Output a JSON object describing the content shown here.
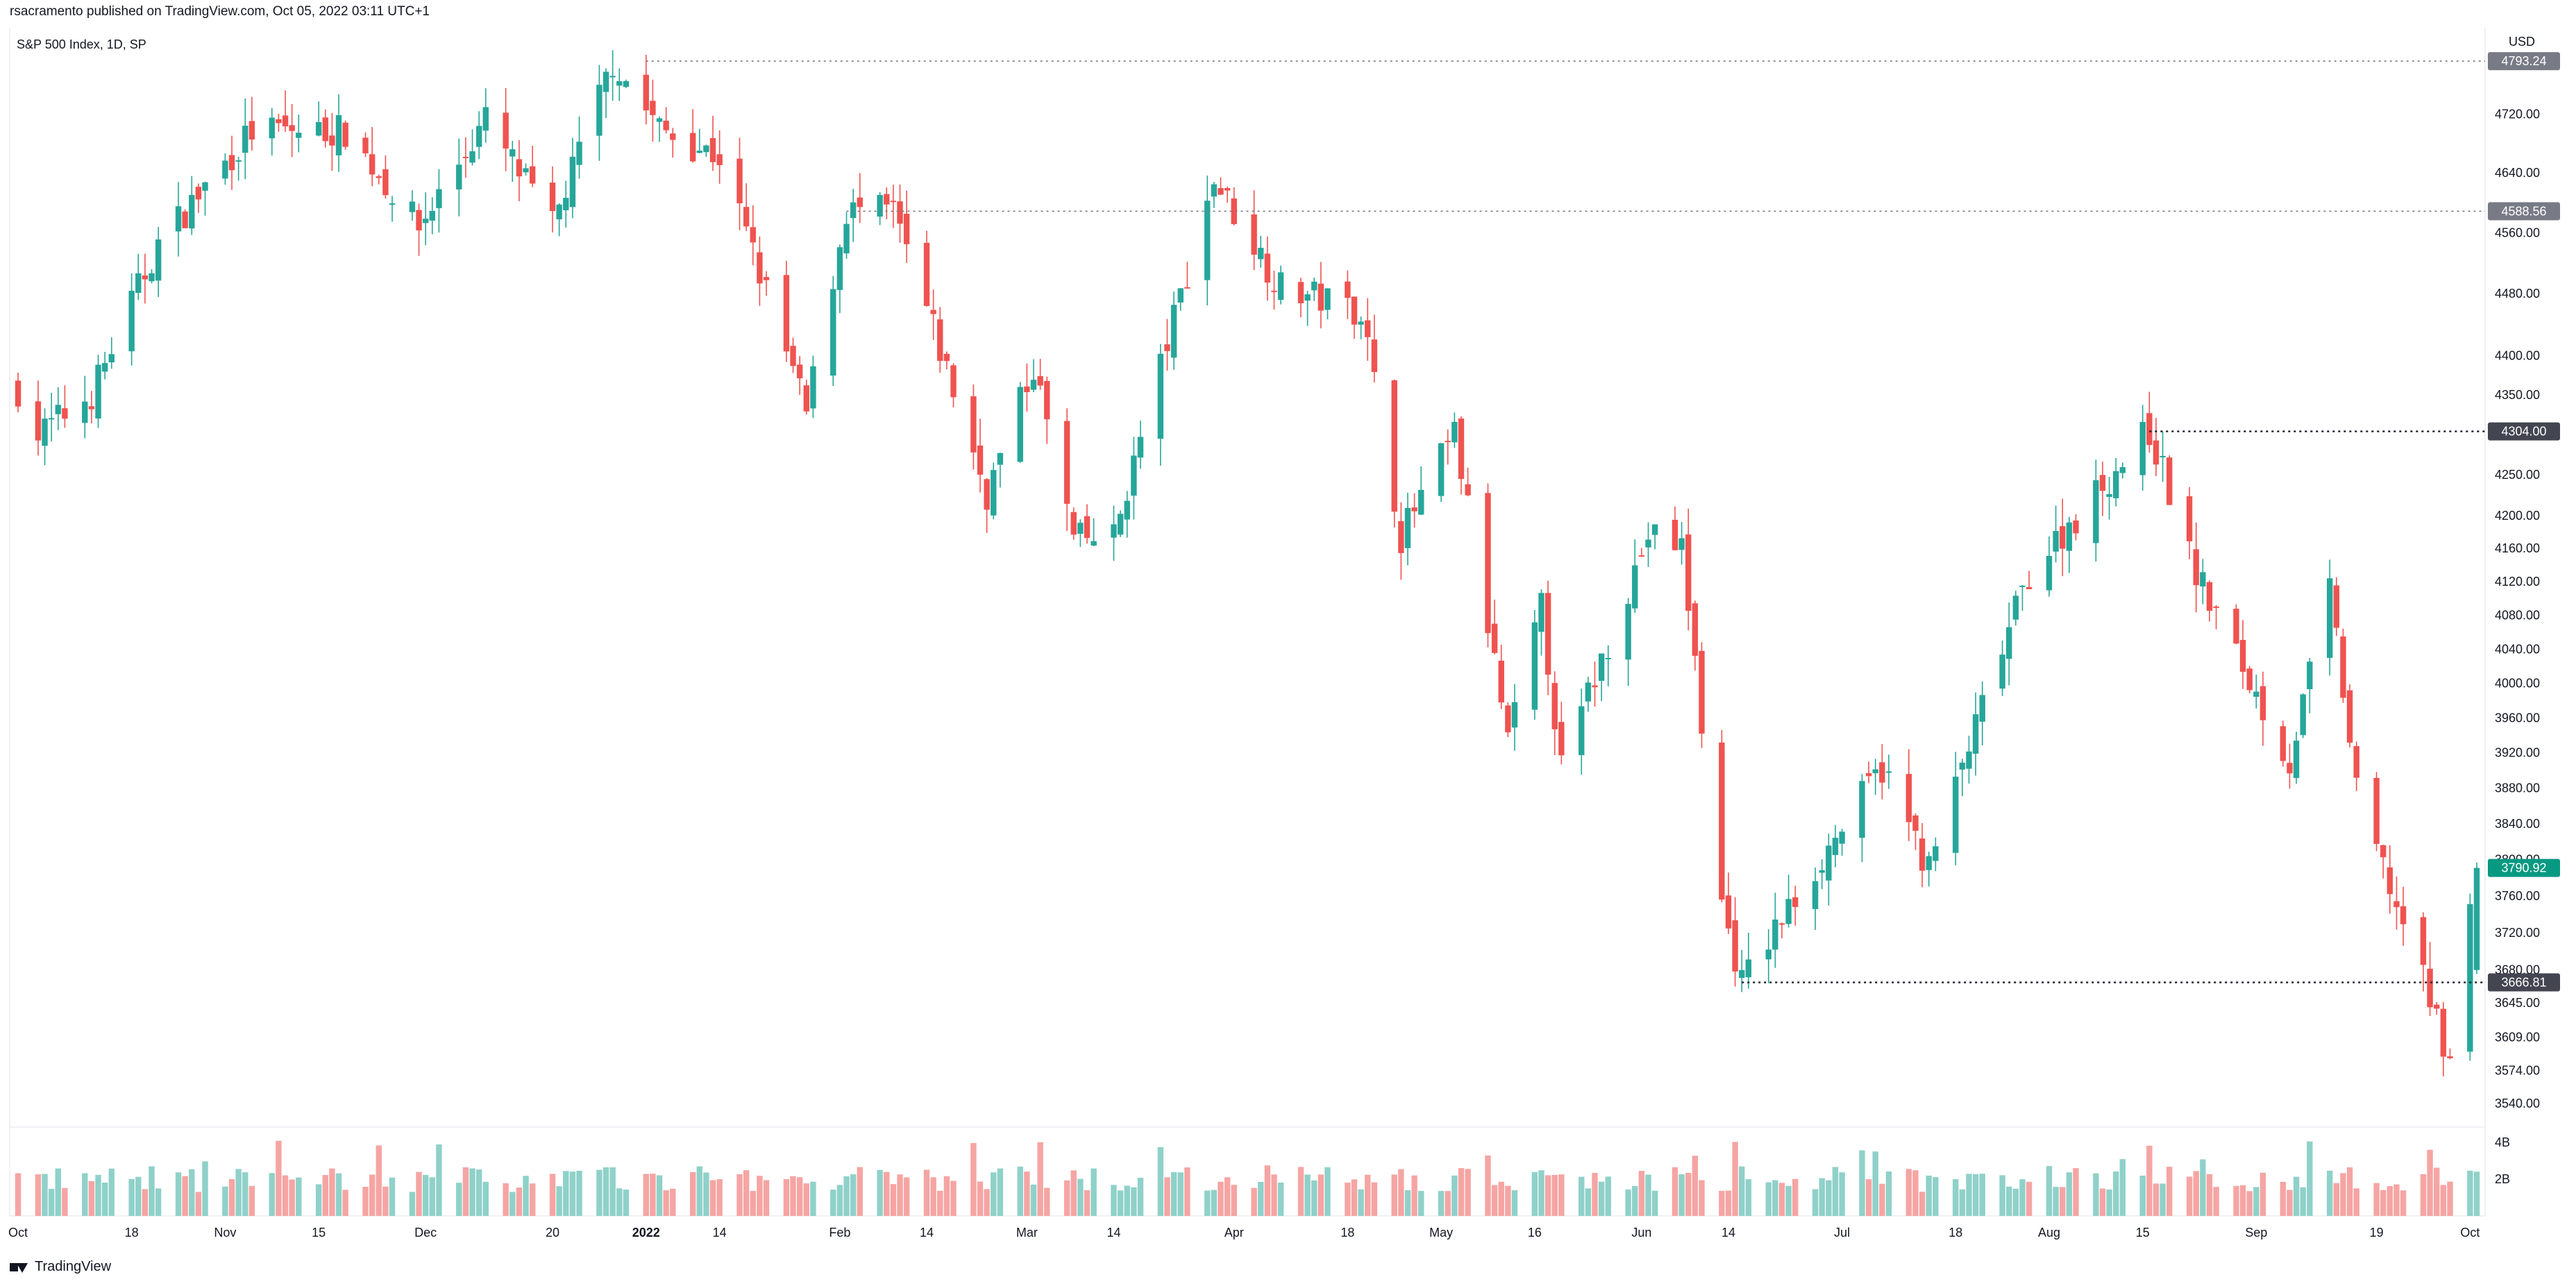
{
  "header": {
    "published_line": "rsacramento published on TradingView.com, Oct 05, 2022 03:11 UTC+1",
    "symbol_line": "S&P 500 Index, 1D, SP",
    "currency": "USD"
  },
  "footer": {
    "brand": "TradingView"
  },
  "colors": {
    "up": "#26a69a",
    "down": "#ef5350",
    "volume_up": "#8fd1c9",
    "volume_down": "#f5a5a3",
    "price_tag_gray": "#787b86",
    "price_tag_up": "#089981",
    "price_tag_dark": "#434651"
  },
  "chart_data": {
    "type": "candlestick",
    "title": "S&P 500 Index, 1D, SP",
    "y_axis": {
      "scale": "log",
      "range": [
        3520,
        4840
      ],
      "ticks": [
        "4720.00",
        "4640.00",
        "4560.00",
        "4480.00",
        "4400.00",
        "4350.00",
        "4250.00",
        "4200.00",
        "4160.00",
        "4120.00",
        "4080.00",
        "4040.00",
        "4000.00",
        "3960.00",
        "3920.00",
        "3880.00",
        "3840.00",
        "3800.00",
        "3760.00",
        "3720.00",
        "3680.00",
        "3645.00",
        "3609.00",
        "3574.00",
        "3540.00"
      ]
    },
    "x_axis": {
      "range": [
        "2021-10-01",
        "2022-10-04"
      ],
      "labels": [
        {
          "date": "2021-10-01",
          "text": "Oct"
        },
        {
          "date": "2021-10-18",
          "text": "18"
        },
        {
          "date": "2021-11-01",
          "text": "Nov"
        },
        {
          "date": "2021-11-15",
          "text": "15"
        },
        {
          "date": "2021-12-01",
          "text": "Dec"
        },
        {
          "date": "2021-12-20",
          "text": "20"
        },
        {
          "date": "2022-01-03",
          "text": "2022"
        },
        {
          "date": "2022-01-14",
          "text": "14"
        },
        {
          "date": "2022-02-01",
          "text": "Feb"
        },
        {
          "date": "2022-02-14",
          "text": "14"
        },
        {
          "date": "2022-03-01",
          "text": "Mar"
        },
        {
          "date": "2022-03-14",
          "text": "14"
        },
        {
          "date": "2022-04-01",
          "text": "Apr"
        },
        {
          "date": "2022-04-18",
          "text": "18"
        },
        {
          "date": "2022-05-02",
          "text": "May"
        },
        {
          "date": "2022-05-16",
          "text": "16"
        },
        {
          "date": "2022-06-01",
          "text": "Jun"
        },
        {
          "date": "2022-06-14",
          "text": "14"
        },
        {
          "date": "2022-07-01",
          "text": "Jul"
        },
        {
          "date": "2022-07-18",
          "text": "18"
        },
        {
          "date": "2022-08-01",
          "text": "Aug"
        },
        {
          "date": "2022-08-15",
          "text": "15"
        },
        {
          "date": "2022-09-01",
          "text": "Sep"
        },
        {
          "date": "2022-09-19",
          "text": "19"
        },
        {
          "date": "2022-10-03",
          "text": "Oct"
        }
      ]
    },
    "price_levels": [
      {
        "value": 4793.24,
        "label": "4793.24",
        "start": "2022-01-03",
        "style": "gray"
      },
      {
        "value": 4588.56,
        "label": "4588.56",
        "start": "2022-02-02",
        "style": "gray"
      },
      {
        "value": 4304.0,
        "label": "4304.00",
        "start": "2022-08-16",
        "style": "dark"
      },
      {
        "value": 3666.81,
        "label": "3666.81",
        "start": "2022-06-16",
        "style": "dark"
      }
    ],
    "last_price": {
      "value": 3790.92,
      "label": "3790.92"
    },
    "volume_axis": {
      "ticks": [
        "4B",
        "2B"
      ],
      "max": 4.6
    },
    "anchors": [
      {
        "date": "2021-10-01",
        "price": 4357
      },
      {
        "date": "2021-10-04",
        "price": 4300
      },
      {
        "date": "2021-10-12",
        "price": 4351
      },
      {
        "date": "2021-10-22",
        "price": 4545
      },
      {
        "date": "2021-11-05",
        "price": 4697
      },
      {
        "date": "2021-11-19",
        "price": 4697
      },
      {
        "date": "2021-11-30",
        "price": 4567
      },
      {
        "date": "2021-12-10",
        "price": 4712
      },
      {
        "date": "2021-12-20",
        "price": 4568
      },
      {
        "date": "2021-12-29",
        "price": 4793
      },
      {
        "date": "2022-01-05",
        "price": 4700
      },
      {
        "date": "2022-01-14",
        "price": 4662
      },
      {
        "date": "2022-01-27",
        "price": 4326
      },
      {
        "date": "2022-02-02",
        "price": 4589
      },
      {
        "date": "2022-02-09",
        "price": 4587
      },
      {
        "date": "2022-02-23",
        "price": 4226
      },
      {
        "date": "2022-03-02",
        "price": 4386
      },
      {
        "date": "2022-03-08",
        "price": 4170
      },
      {
        "date": "2022-03-14",
        "price": 4173
      },
      {
        "date": "2022-03-29",
        "price": 4631
      },
      {
        "date": "2022-04-08",
        "price": 4488
      },
      {
        "date": "2022-04-20",
        "price": 4459
      },
      {
        "date": "2022-04-26",
        "price": 4175
      },
      {
        "date": "2022-05-04",
        "price": 4300
      },
      {
        "date": "2022-05-12",
        "price": 3930
      },
      {
        "date": "2022-05-17",
        "price": 4088
      },
      {
        "date": "2022-05-20",
        "price": 3901
      },
      {
        "date": "2022-06-02",
        "price": 4176
      },
      {
        "date": "2022-06-07",
        "price": 4161
      },
      {
        "date": "2022-06-13",
        "price": 3750
      },
      {
        "date": "2022-06-16",
        "price": 3667
      },
      {
        "date": "2022-07-07",
        "price": 3903
      },
      {
        "date": "2022-07-14",
        "price": 3790
      },
      {
        "date": "2022-07-29",
        "price": 4130
      },
      {
        "date": "2022-08-16",
        "price": 4305
      },
      {
        "date": "2022-08-23",
        "price": 4128
      },
      {
        "date": "2022-09-06",
        "price": 3908
      },
      {
        "date": "2022-09-12",
        "price": 4110
      },
      {
        "date": "2022-09-16",
        "price": 3873
      },
      {
        "date": "2022-09-30",
        "price": 3586
      },
      {
        "date": "2022-10-04",
        "price": 3791
      }
    ]
  }
}
